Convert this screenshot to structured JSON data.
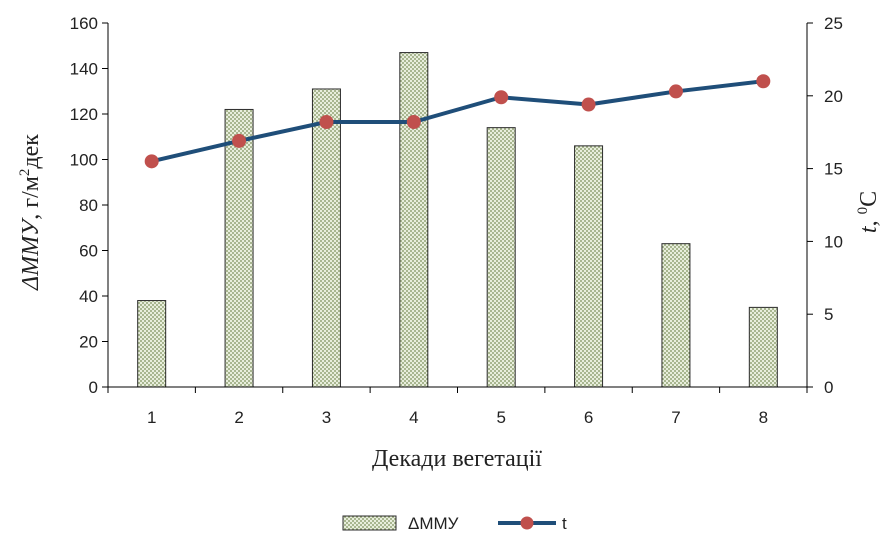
{
  "chart_data": {
    "type": "bar",
    "categories": [
      "1",
      "2",
      "3",
      "4",
      "5",
      "6",
      "7",
      "8"
    ],
    "series": [
      {
        "name": "ΔММУ",
        "type": "bar",
        "axis": "left",
        "values": [
          38,
          122,
          131,
          147,
          114,
          106,
          63,
          35
        ]
      },
      {
        "name": "t",
        "type": "line",
        "axis": "right",
        "values": [
          15.5,
          16.9,
          18.2,
          18.2,
          19.9,
          19.4,
          20.3,
          21.0
        ]
      }
    ],
    "xlabel": "Декади вегетації",
    "ylabel": {
      "italic": "ΔMMУ",
      "prefix": ", г/м",
      "sup": "2",
      "suffix": "дек"
    },
    "y2label": {
      "italic": "t",
      "prefix": ", ",
      "sup": "0",
      "suffix": "С"
    },
    "ylim": [
      0,
      160
    ],
    "y2lim": [
      0,
      25
    ],
    "yticks": [
      "0",
      "20",
      "40",
      "60",
      "80",
      "100",
      "120",
      "140",
      "160"
    ],
    "y2ticks": [
      "0",
      "5",
      "10",
      "15",
      "20",
      "25"
    ],
    "grid": false,
    "legend_position": "bottom",
    "colors": {
      "bar_fill": "#e8eedc",
      "bar_dot": "#7a8f5a",
      "bar_border": "#2b2b2b",
      "line": "#1f4e79",
      "marker": "#c0504d",
      "axis": "#000000"
    }
  }
}
